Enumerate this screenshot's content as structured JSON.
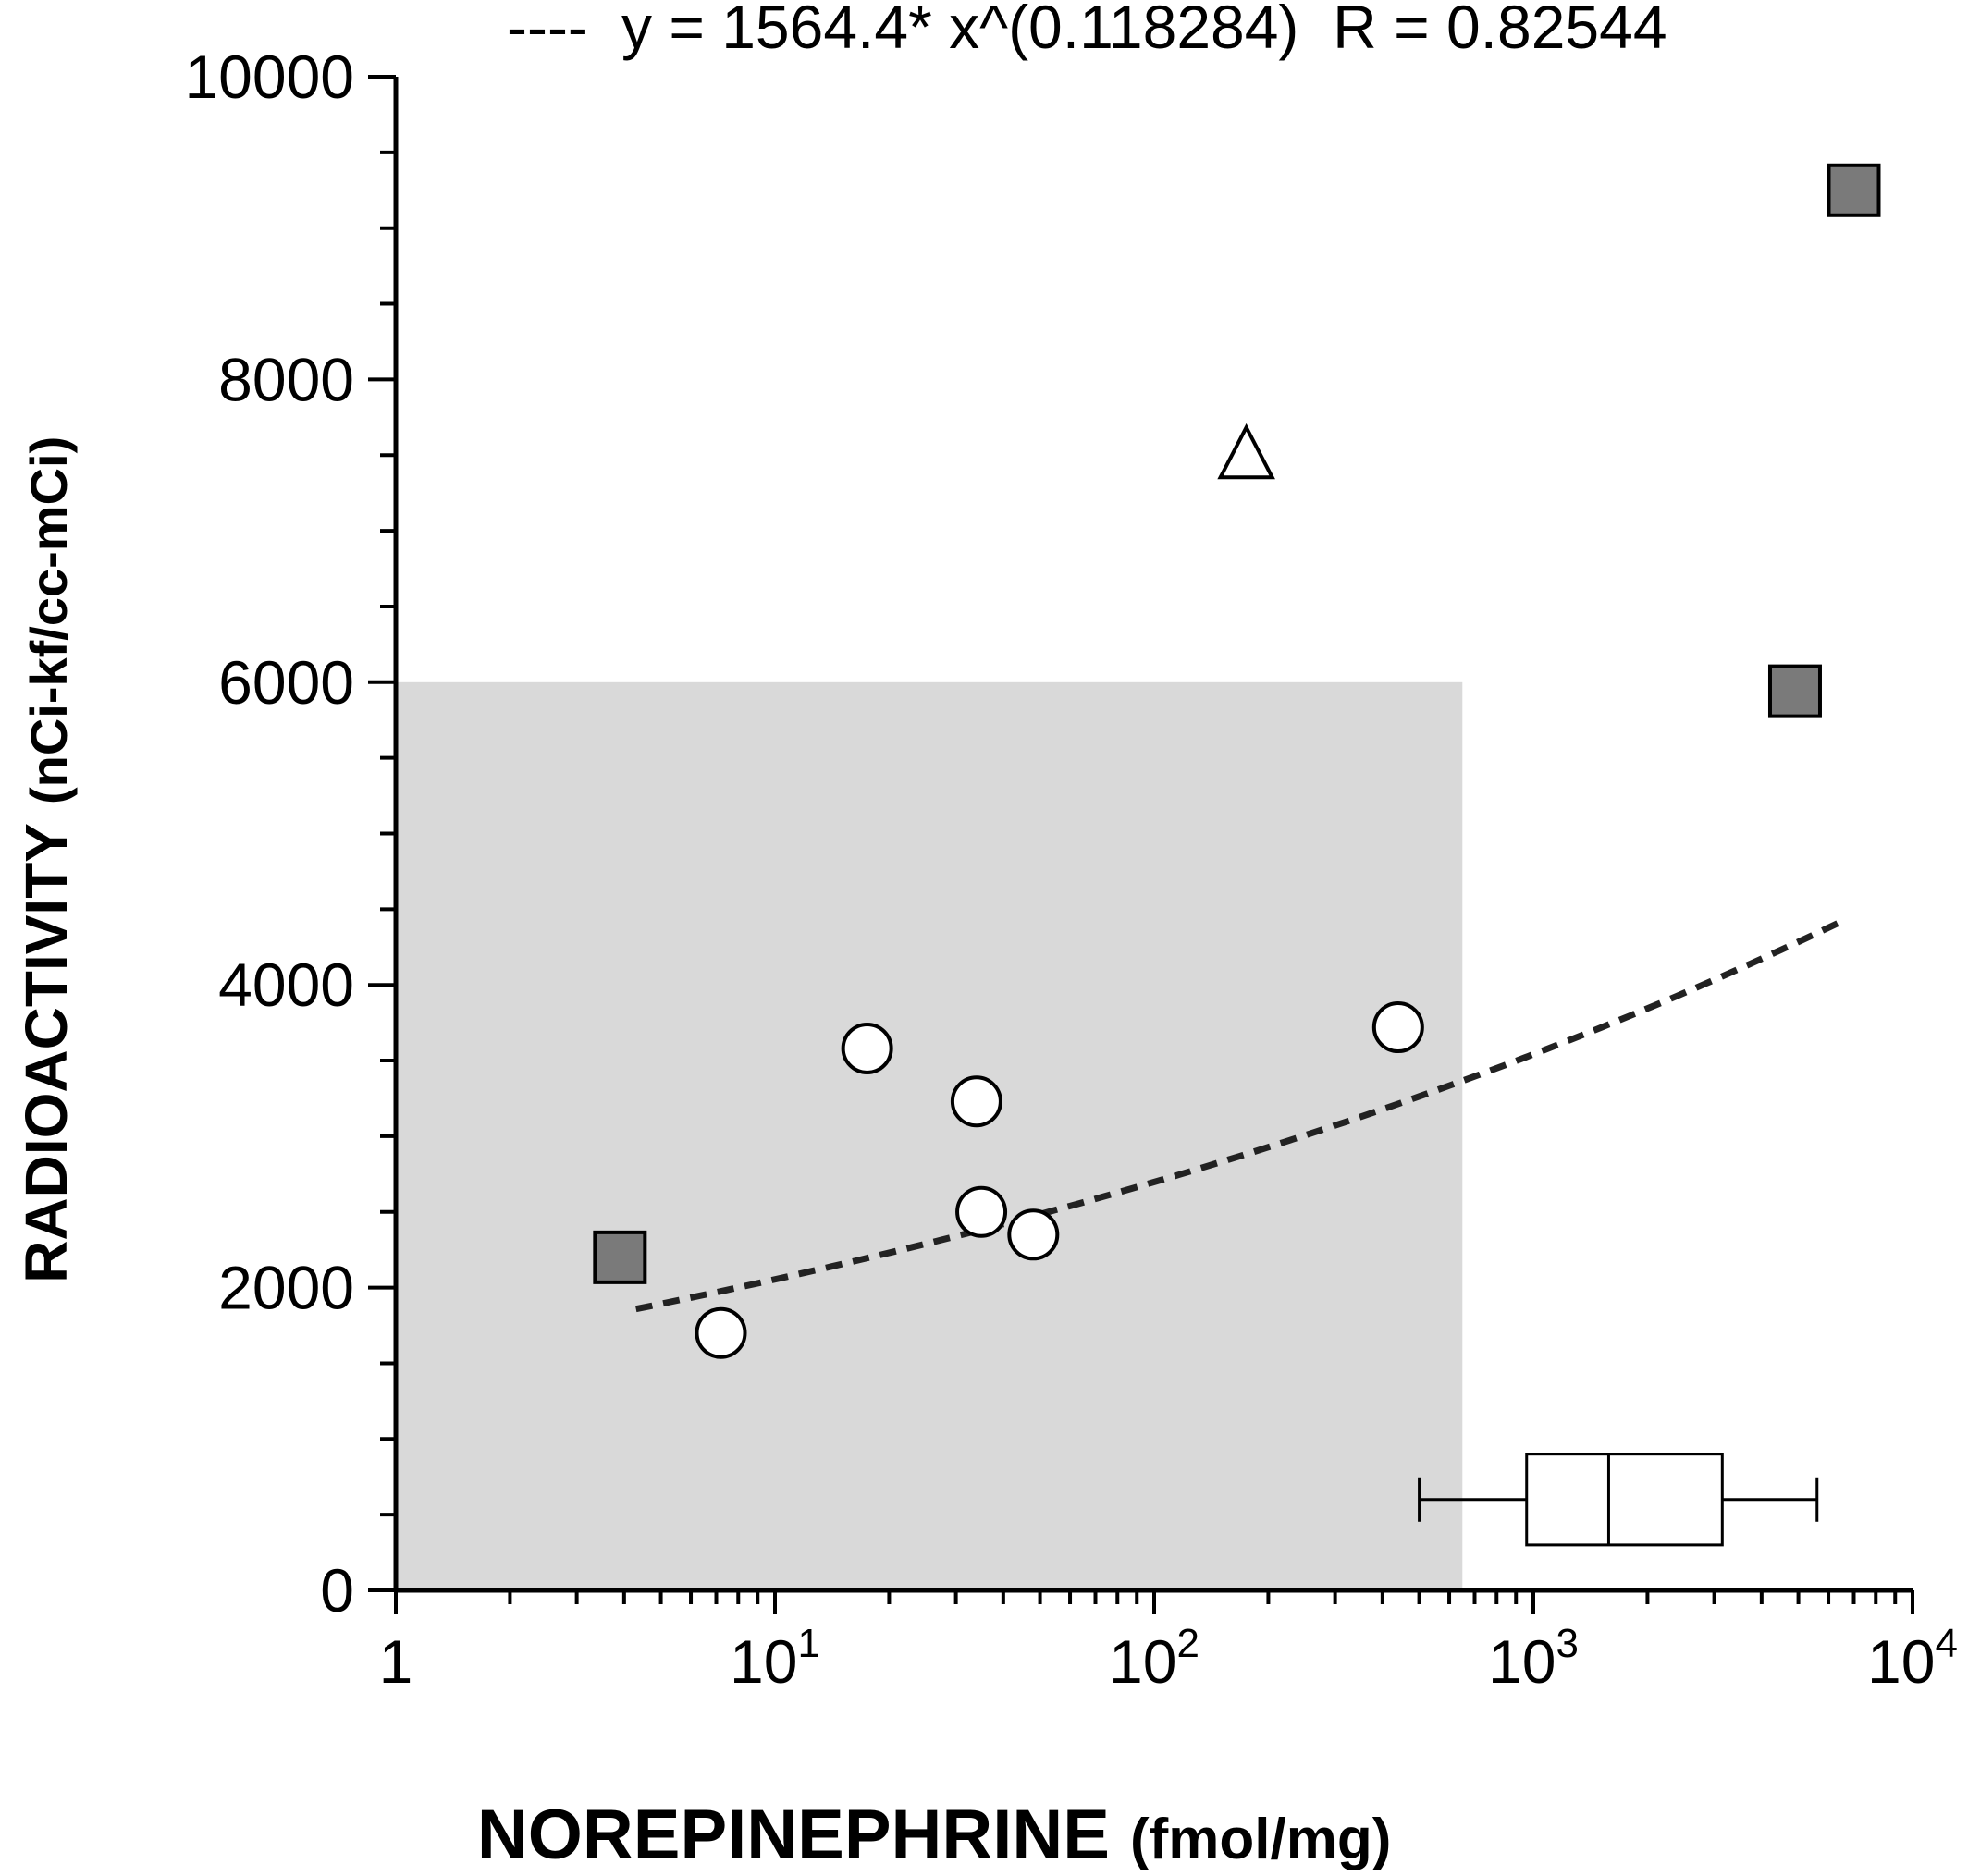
{
  "chart_data": {
    "type": "scatter",
    "title": "",
    "fit_legend": {
      "prefix": "----",
      "text": "y = 1564.4* x^(0.118284)  R = 0.82544"
    },
    "fit": {
      "a": 1564.4,
      "b": 0.118284,
      "x_range": [
        4.3,
        6500
      ]
    },
    "xlabel": {
      "main": "NOREPINEPHRINE",
      "unit": "(fmol/mg)"
    },
    "ylabel": {
      "main": "RADIOACTIVITY",
      "unit": "(nCi-kf/cc-mCi)"
    },
    "x_scale": "log",
    "xlim": [
      1,
      10000
    ],
    "ylim": [
      0,
      10000
    ],
    "x_ticks": [
      {
        "value": 1,
        "base": "1",
        "exp": ""
      },
      {
        "value": 10,
        "base": "10",
        "exp": "1"
      },
      {
        "value": 100,
        "base": "10",
        "exp": "2"
      },
      {
        "value": 1000,
        "base": "10",
        "exp": "3"
      },
      {
        "value": 10000,
        "base": "10",
        "exp": "4"
      }
    ],
    "y_ticks": [
      "0",
      "2000",
      "4000",
      "6000",
      "8000",
      "10000"
    ],
    "shaded_region": {
      "x": [
        1,
        650
      ],
      "y": [
        0,
        6000
      ],
      "color": "#d9d9d9"
    },
    "series": [
      {
        "marker": "circle",
        "fill": "#ffffff",
        "points": [
          {
            "x": 7.2,
            "y": 1700
          },
          {
            "x": 17.5,
            "y": 3580
          },
          {
            "x": 34,
            "y": 3230
          },
          {
            "x": 35,
            "y": 2500
          },
          {
            "x": 48,
            "y": 2350
          },
          {
            "x": 440,
            "y": 3720
          }
        ]
      },
      {
        "marker": "square",
        "fill": "#7a7a7a",
        "points": [
          {
            "x": 3.9,
            "y": 2200
          },
          {
            "x": 4900,
            "y": 5940
          },
          {
            "x": 7000,
            "y": 9250
          }
        ]
      },
      {
        "marker": "triangle",
        "fill": "#ffffff",
        "points": [
          {
            "x": 175,
            "y": 7500
          }
        ]
      }
    ],
    "boxplot": {
      "whisker_low": 500,
      "q1": 960,
      "median": 1580,
      "q3": 3150,
      "whisker_high": 5600,
      "y_bottom": 300,
      "y_top": 900
    }
  }
}
